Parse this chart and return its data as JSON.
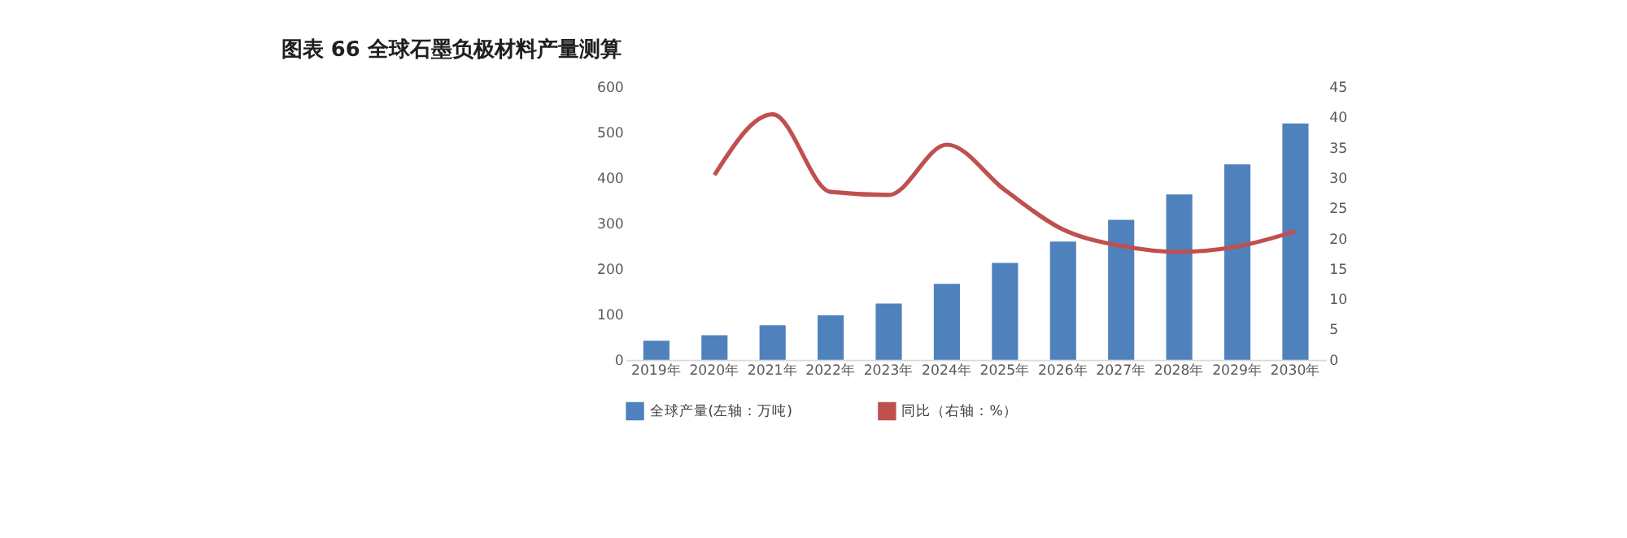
{
  "chart_data": {
    "type": "bar",
    "title": "图表 66 全球石墨负极材料产量测算",
    "categories": [
      "2019年",
      "2020年",
      "2021年",
      "2022年",
      "2023年",
      "2024年",
      "2025年",
      "2026年",
      "2027年",
      "2028年",
      "2029年",
      "2030年"
    ],
    "series": [
      {
        "name": "全球产量(左轴：万吨)",
        "color": "#4f81bd",
        "values": [
          42,
          54,
          76,
          98,
          124,
          167,
          213,
          260,
          308,
          364,
          430,
          520
        ]
      },
      {
        "name": "同比（右轴：%）",
        "color": "#c0504d",
        "type": "line",
        "axis": "y2",
        "values": [
          null,
          30.5,
          40.5,
          27.7,
          27.2,
          35.5,
          28,
          21.5,
          18.8,
          17.8,
          18.7,
          21.2
        ]
      }
    ],
    "ylim": [
      0,
      600
    ],
    "yticks": [
      0,
      100,
      200,
      300,
      400,
      500,
      600
    ],
    "y2lim": [
      0,
      45
    ],
    "y2ticks": [
      0,
      5,
      10,
      15,
      20,
      25,
      30,
      35,
      40,
      45
    ],
    "grid": false,
    "legend": "bottom"
  }
}
